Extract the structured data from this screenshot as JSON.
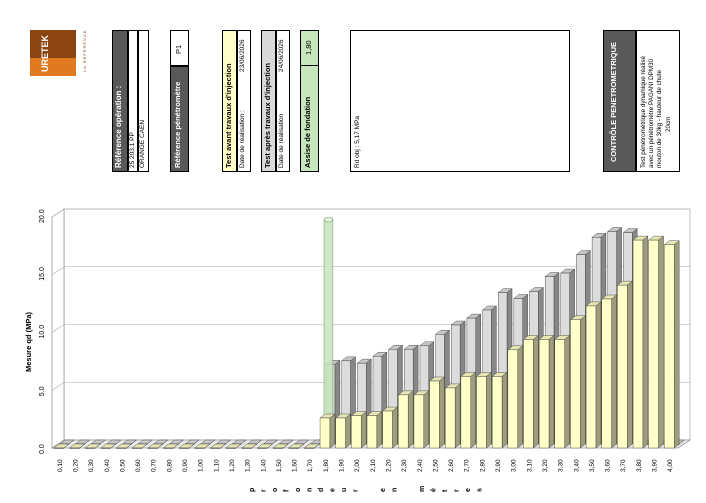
{
  "logo": {
    "brand": "URETEK",
    "tagline": "LA RÉFÉRENCE"
  },
  "operation": {
    "label": "Référence opération :",
    "ref": "25 203.1 PP",
    "client": "ORANGE CAEN"
  },
  "penetrometre": {
    "label": "Référence pénétromètre",
    "value": "P1"
  },
  "test_avant": {
    "label": "Test avant travaux d'injection",
    "date_label": "Date de réalisation :",
    "date": "23/06/2026"
  },
  "test_apres": {
    "label": "Test après travaux d'injection",
    "date_label": "Date de réalisation",
    "date": "24/06/2026"
  },
  "assise": {
    "label": "Assise de fondation",
    "value": "1,80"
  },
  "rd": {
    "text": "Rd obj : 5,17 MPa"
  },
  "controle": {
    "title": "CONTRÔLE PENETROMETRIQUE",
    "lines": [
      "Test pénétrométrique dynamique réalisé",
      "avec un pénétromètre PAGANI DPM30",
      "mouton de 30kg - hauteur de chute",
      "20cm"
    ]
  },
  "colors": {
    "avant": "#ffffc8",
    "apres": "#dcdcdc",
    "assise": "#c8e6be",
    "frame": "#555555"
  },
  "chart_data": {
    "type": "bar",
    "ylabel": "Mesure qd (MPa)",
    "xlabel": "profondeur en mètres",
    "ylim": [
      0,
      20
    ],
    "yticks": [
      "0.0",
      "5.0",
      "10.0",
      "15.0",
      "20.0"
    ],
    "grid": true,
    "categories": [
      "0,10",
      "0,20",
      "0,30",
      "0,40",
      "0,50",
      "0,60",
      "0,70",
      "0,80",
      "0,90",
      "1,00",
      "1,10",
      "1,20",
      "1,30",
      "1,40",
      "1,50",
      "1,60",
      "1,70",
      "1,80",
      "1,90",
      "2,00",
      "2,10",
      "2,20",
      "2,30",
      "2,40",
      "2,50",
      "2,60",
      "2,70",
      "2,80",
      "2,90",
      "3,00",
      "3,10",
      "3,20",
      "3,30",
      "3,40",
      "3,50",
      "3,60",
      "3,70",
      "3,80",
      "3,90",
      "4,00"
    ],
    "series": [
      {
        "key": "avant",
        "values": [
          0,
          0,
          0,
          0,
          0,
          0,
          0,
          0,
          0,
          0,
          0,
          0,
          0,
          0,
          0,
          0,
          0,
          2.6,
          2.6,
          2.8,
          2.8,
          3.2,
          4.6,
          4.6,
          5.8,
          5.2,
          6.2,
          6.2,
          6.2,
          8.5,
          9.4,
          9.4,
          9.4,
          11.1,
          12.3,
          12.9,
          14.1,
          18.0,
          18.0,
          17.6
        ]
      },
      {
        "key": "apres",
        "values": [
          0,
          0,
          0,
          0,
          0,
          0,
          0,
          0,
          0,
          0,
          0,
          0,
          0,
          0,
          0,
          0,
          0,
          6.9,
          7.2,
          7.0,
          7.6,
          8.2,
          8.2,
          8.5,
          9.5,
          10.3,
          10.9,
          11.6,
          13.1,
          12.6,
          13.2,
          14.5,
          14.8,
          16.4,
          17.9,
          18.4,
          18.3,
          0,
          0,
          0
        ]
      },
      {
        "key": "assise",
        "values": [
          0,
          0,
          0,
          0,
          0,
          0,
          0,
          0,
          0,
          0,
          0,
          0,
          0,
          0,
          0,
          0,
          0,
          19.6,
          0,
          0,
          0,
          0,
          0,
          0,
          0,
          0,
          0,
          0,
          0,
          0,
          0,
          0,
          0,
          0,
          0,
          0,
          0,
          0,
          0,
          0
        ]
      }
    ]
  }
}
